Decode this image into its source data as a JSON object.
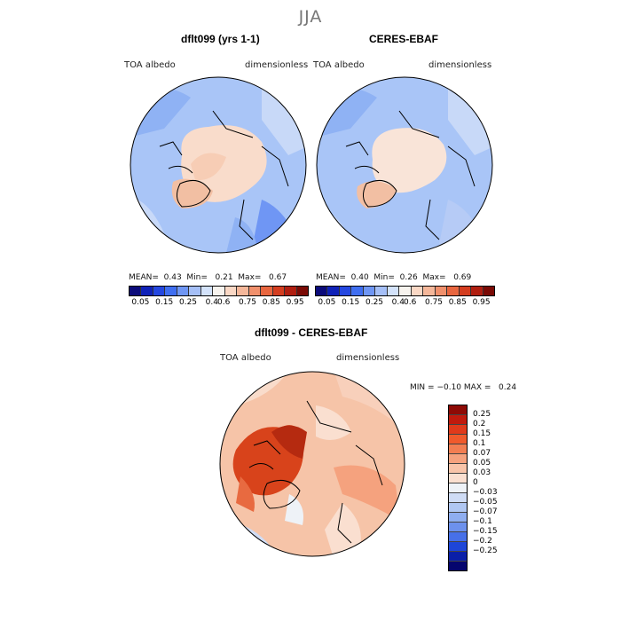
{
  "season": "JJA",
  "panels": [
    {
      "title": "dflt099 (yrs 1-1)",
      "variable": "TOA albedo",
      "units": "dimensionless",
      "stats": {
        "mean_label": "MEAN=",
        "mean": "0.43",
        "min_label": "Min=",
        "min": "0.21",
        "max_label": "Max=",
        "max": "0.67"
      }
    },
    {
      "title": "CERES-EBAF",
      "variable": "TOA albedo",
      "units": "dimensionless",
      "stats": {
        "mean_label": "MEAN=",
        "mean": "0.40",
        "min_label": "Min=",
        "min": "0.26",
        "max_label": "Max=",
        "max": "0.69"
      }
    }
  ],
  "top_colorbar": {
    "colors": [
      "#0b0b7a",
      "#0f22b8",
      "#2447e0",
      "#3f6ef0",
      "#6f96f4",
      "#a5bff7",
      "#d3e2fa",
      "#f7f3ee",
      "#fad8c5",
      "#f5b79a",
      "#f0906c",
      "#e8663f",
      "#d43d1f",
      "#b01e10",
      "#7a0a05"
    ],
    "labels": [
      "0.05",
      "0.15",
      "0.25",
      "0.4",
      "0.6",
      "0.75",
      "0.85",
      "0.95"
    ]
  },
  "diff_panel": {
    "title": "dflt099 - CERES-EBAF",
    "variable": "TOA albedo",
    "units": "dimensionless",
    "stats": {
      "min_label": "MIN =",
      "min": "−0.10",
      "max_label": "MAX =",
      "max": "0.24"
    }
  },
  "diff_colorbar": {
    "colors": [
      "#8e0a05",
      "#c01a0d",
      "#e03a1b",
      "#f05a2c",
      "#f27e52",
      "#f5a27e",
      "#f8c4a9",
      "#fadfd0",
      "#eef2f7",
      "#cfdcf5",
      "#b0c7f2",
      "#8faef0",
      "#6d91ed",
      "#4770e8",
      "#1e46d8",
      "#0a1fa8",
      "#05056e"
    ],
    "labels": [
      "0.25",
      "0.2",
      "0.15",
      "0.1",
      "0.07",
      "0.05",
      "0.03",
      "0",
      "−0.03",
      "−0.05",
      "−0.07",
      "−0.1",
      "−0.15",
      "−0.2",
      "−0.25"
    ]
  },
  "colors": {
    "ocean_blue": "#a9c5f7",
    "ice_peach": "#f9dccb",
    "diff_red": "#e2461e",
    "diff_light": "#f6c4a8"
  }
}
